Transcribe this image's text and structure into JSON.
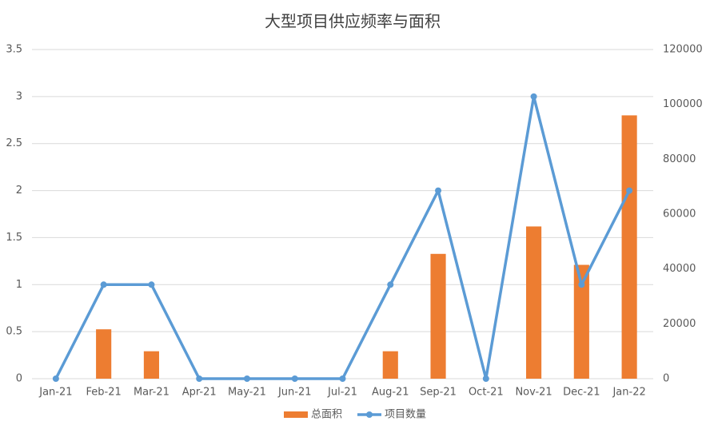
{
  "chart_data": {
    "type": "combo",
    "title": "大型项目供应频率与面积",
    "categories": [
      "Jan-21",
      "Feb-21",
      "Mar-21",
      "Apr-21",
      "May-21",
      "Jun-21",
      "Jul-21",
      "Aug-21",
      "Sep-21",
      "Oct-21",
      "Nov-21",
      "Dec-21",
      "Jan-22"
    ],
    "series": [
      {
        "name": "总面积",
        "type": "bar",
        "axis": "y2",
        "color": "#ed7d31",
        "values": [
          0,
          18000,
          10000,
          0,
          0,
          0,
          0,
          10000,
          45500,
          0,
          55500,
          41500,
          96000
        ]
      },
      {
        "name": "项目数量",
        "type": "line",
        "axis": "y",
        "color": "#5b9bd5",
        "values": [
          0,
          1,
          1,
          0,
          0,
          0,
          0,
          1,
          2,
          0,
          3,
          1,
          2
        ]
      }
    ],
    "ylim": [
      0,
      3.5
    ],
    "yticks": [
      0,
      0.5,
      1,
      1.5,
      2,
      2.5,
      3,
      3.5
    ],
    "y2lim": [
      0,
      120000
    ],
    "y2ticks": [
      0,
      20000,
      40000,
      60000,
      80000,
      100000,
      120000
    ],
    "grid": true,
    "legend": "bottom"
  }
}
